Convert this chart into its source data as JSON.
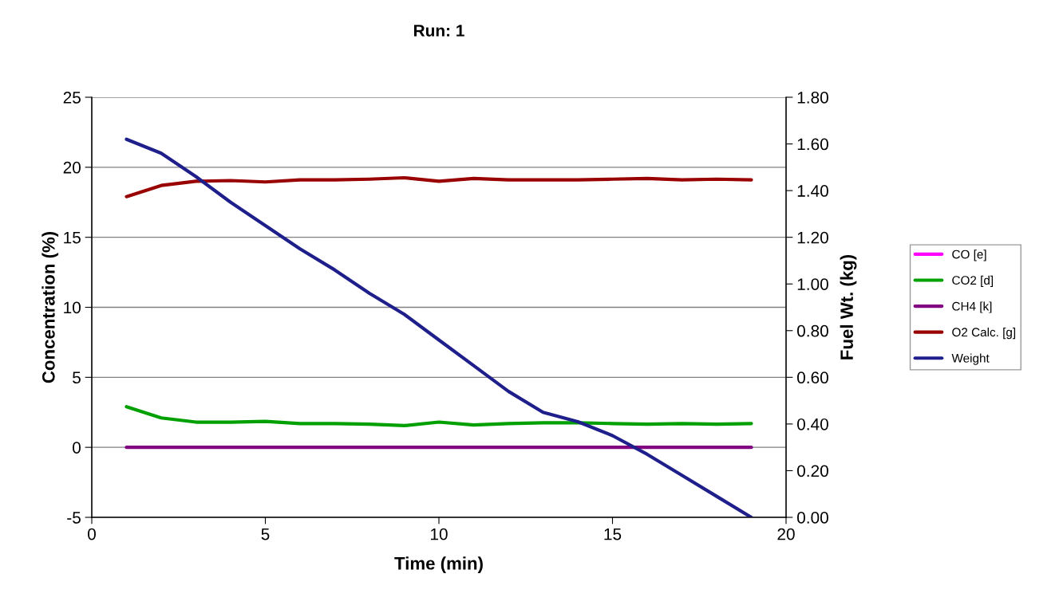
{
  "chart_data": {
    "type": "line",
    "title": "Run: 1",
    "xlabel": "Time (min)",
    "ylabel": "Concentration (%)",
    "y2label": "Fuel Wt. (kg)",
    "x": [
      1,
      2,
      3,
      4,
      5,
      6,
      7,
      8,
      9,
      10,
      11,
      12,
      13,
      14,
      15,
      16,
      17,
      18,
      19
    ],
    "series": [
      {
        "name": "CO [e]",
        "color": "#ff00ff",
        "values": [
          null,
          null,
          null,
          null,
          null,
          null,
          null,
          null,
          null,
          null,
          null,
          null,
          null,
          null,
          null,
          null,
          null,
          null,
          null
        ]
      },
      {
        "name": "CO2 [d]",
        "color": "#00a000",
        "values": [
          2.9,
          2.1,
          1.8,
          1.8,
          1.85,
          1.7,
          1.7,
          1.65,
          1.55,
          1.8,
          1.6,
          1.7,
          1.75,
          1.75,
          1.7,
          1.65,
          1.7,
          1.65,
          1.7
        ]
      },
      {
        "name": "CH4 [k]",
        "color": "#800080",
        "values": [
          0,
          0,
          0,
          0,
          0,
          0,
          0,
          0,
          0,
          0,
          0,
          0,
          0,
          0,
          0,
          0,
          0,
          0,
          0
        ]
      },
      {
        "name": "O2 Calc. [g]",
        "color": "#990000",
        "values": [
          17.9,
          18.7,
          19.0,
          19.05,
          18.95,
          19.1,
          19.1,
          19.15,
          19.25,
          19.0,
          19.2,
          19.1,
          19.1,
          19.1,
          19.15,
          19.2,
          19.1,
          19.15,
          19.1
        ]
      },
      {
        "name": "Weight",
        "color": "#1f1f8c",
        "axis": "y2",
        "values": [
          1.62,
          1.56,
          1.46,
          1.35,
          1.25,
          1.15,
          1.06,
          0.96,
          0.87,
          0.76,
          0.65,
          0.54,
          0.45,
          0.41,
          0.35,
          0.27,
          0.18,
          0.09,
          0.0
        ]
      }
    ],
    "xlim": [
      0,
      20
    ],
    "xticks": [
      0,
      5,
      10,
      15,
      20
    ],
    "ylim": [
      -5,
      25
    ],
    "yticks": [
      -5,
      0,
      5,
      10,
      15,
      20,
      25
    ],
    "y2lim": [
      0,
      1.8
    ],
    "y2ticks": [
      {
        "value": 0,
        "label": "0.00"
      },
      {
        "value": 0.2,
        "label": "0.20"
      },
      {
        "value": 0.4,
        "label": "0.40"
      },
      {
        "value": 0.6,
        "label": "0.60"
      },
      {
        "value": 0.8,
        "label": "0.80"
      },
      {
        "value": 1.0,
        "label": "1.00"
      },
      {
        "value": 1.2,
        "label": "1.20"
      },
      {
        "value": 1.4,
        "label": "1.40"
      },
      {
        "value": 1.6,
        "label": "1.60"
      },
      {
        "value": 1.8,
        "label": "1.80"
      }
    ],
    "grid": "y",
    "legend": "right",
    "marker": "none",
    "line_style": "solid"
  }
}
